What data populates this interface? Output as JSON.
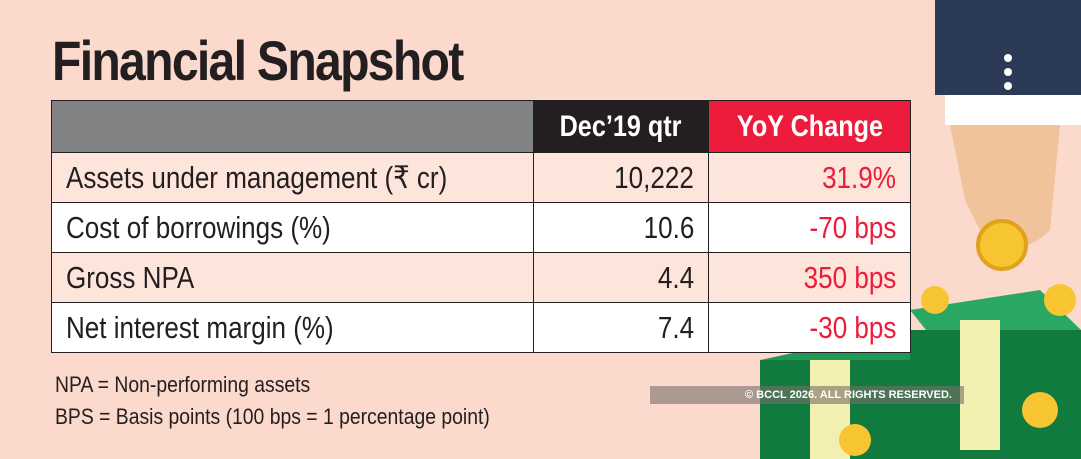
{
  "title": "Financial Snapshot",
  "table": {
    "headers": [
      "",
      "Dec’19 qtr",
      "YoY Change"
    ],
    "rows": [
      {
        "label": "Assets under management (₹ cr)",
        "value": "10,222",
        "change": "31.9%"
      },
      {
        "label": "Cost of borrowings (%)",
        "value": "10.6",
        "change": "-70 bps"
      },
      {
        "label": "Gross NPA",
        "value": "4.4",
        "change": "350 bps"
      },
      {
        "label": "Net interest margin (%)",
        "value": "7.4",
        "change": "-30 bps"
      }
    ]
  },
  "notes": [
    "NPA = Non-performing assets",
    "BPS = Basis points (100 bps = 1 percentage point)"
  ],
  "copyright": "© BCCL 2026. ALL RIGHTS RESERVED.",
  "colors": {
    "background": "#fbd9cd",
    "header_gray": "#818284",
    "header_dark": "#231f20",
    "accent_red": "#ee1c3c"
  }
}
